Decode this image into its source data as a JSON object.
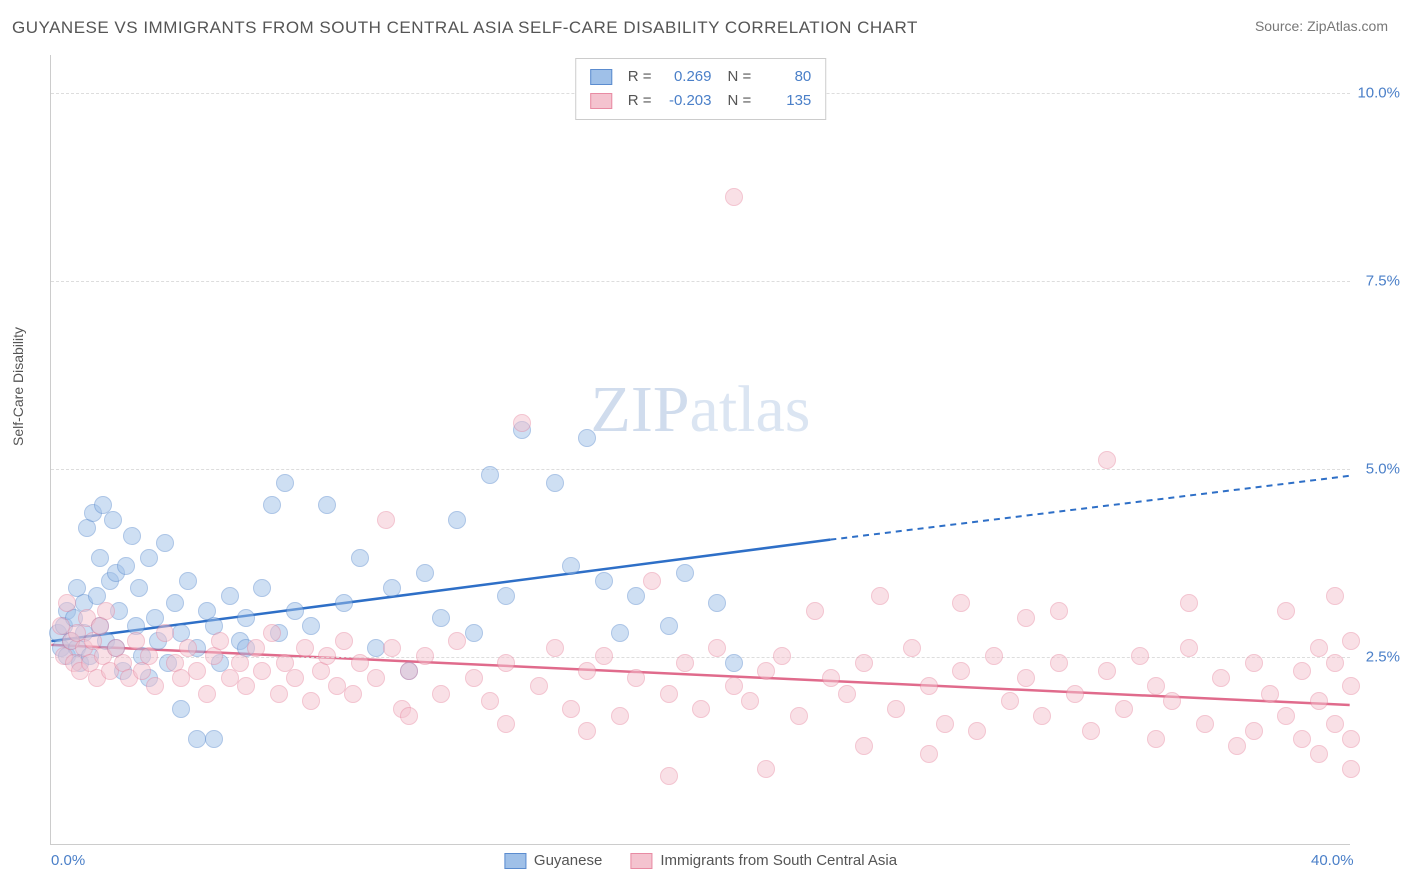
{
  "title": "GUYANESE VS IMMIGRANTS FROM SOUTH CENTRAL ASIA SELF-CARE DISABILITY CORRELATION CHART",
  "source": "Source: ZipAtlas.com",
  "watermark_a": "ZIP",
  "watermark_b": "atlas",
  "ylabel": "Self-Care Disability",
  "chart": {
    "type": "scatter",
    "xlim": [
      0,
      40
    ],
    "ylim": [
      0,
      10.5
    ],
    "xticks": [
      {
        "v": 0,
        "label": "0.0%"
      },
      {
        "v": 40,
        "label": "40.0%"
      }
    ],
    "yticks": [
      {
        "v": 2.5,
        "label": "2.5%"
      },
      {
        "v": 5.0,
        "label": "5.0%"
      },
      {
        "v": 7.5,
        "label": "7.5%"
      },
      {
        "v": 10.0,
        "label": "10.0%"
      }
    ],
    "grid_color": "#dddddd",
    "axis_color": "#cccccc",
    "background_color": "#ffffff",
    "marker_radius": 9,
    "marker_opacity": 0.5,
    "series": [
      {
        "name": "Guyanese",
        "id": "guyanese",
        "fill": "#9fc0e8",
        "stroke": "#5b8ccf",
        "line_color": "#2e6fc7",
        "R": "0.269",
        "N": "80",
        "trend": {
          "x1": 0,
          "y1": 2.7,
          "x2": 24,
          "y2": 4.05,
          "x2_ext": 40,
          "y2_ext": 4.9
        },
        "points": [
          [
            0.2,
            2.8
          ],
          [
            0.3,
            2.6
          ],
          [
            0.4,
            2.9
          ],
          [
            0.5,
            2.5
          ],
          [
            0.5,
            3.1
          ],
          [
            0.6,
            2.7
          ],
          [
            0.7,
            3.0
          ],
          [
            0.8,
            2.6
          ],
          [
            0.8,
            3.4
          ],
          [
            0.9,
            2.4
          ],
          [
            1.0,
            3.2
          ],
          [
            1.0,
            2.8
          ],
          [
            1.1,
            4.2
          ],
          [
            1.2,
            2.5
          ],
          [
            1.3,
            4.4
          ],
          [
            1.4,
            3.3
          ],
          [
            1.5,
            2.9
          ],
          [
            1.5,
            3.8
          ],
          [
            1.6,
            4.5
          ],
          [
            1.7,
            2.7
          ],
          [
            1.8,
            3.5
          ],
          [
            1.9,
            4.3
          ],
          [
            2.0,
            2.6
          ],
          [
            2.0,
            3.6
          ],
          [
            2.1,
            3.1
          ],
          [
            2.2,
            2.3
          ],
          [
            2.3,
            3.7
          ],
          [
            2.5,
            4.1
          ],
          [
            2.6,
            2.9
          ],
          [
            2.7,
            3.4
          ],
          [
            2.8,
            2.5
          ],
          [
            3.0,
            3.8
          ],
          [
            3.0,
            2.2
          ],
          [
            3.2,
            3.0
          ],
          [
            3.3,
            2.7
          ],
          [
            3.5,
            4.0
          ],
          [
            3.6,
            2.4
          ],
          [
            3.8,
            3.2
          ],
          [
            4.0,
            2.8
          ],
          [
            4.0,
            1.8
          ],
          [
            4.2,
            3.5
          ],
          [
            4.5,
            2.6
          ],
          [
            4.5,
            1.4
          ],
          [
            4.8,
            3.1
          ],
          [
            5.0,
            2.9
          ],
          [
            5.0,
            1.4
          ],
          [
            5.2,
            2.4
          ],
          [
            5.5,
            3.3
          ],
          [
            5.8,
            2.7
          ],
          [
            6.0,
            3.0
          ],
          [
            6.0,
            2.6
          ],
          [
            6.5,
            3.4
          ],
          [
            6.8,
            4.5
          ],
          [
            7.0,
            2.8
          ],
          [
            7.2,
            4.8
          ],
          [
            7.5,
            3.1
          ],
          [
            8.0,
            2.9
          ],
          [
            8.5,
            4.5
          ],
          [
            9.0,
            3.2
          ],
          [
            9.5,
            3.8
          ],
          [
            10.0,
            2.6
          ],
          [
            10.5,
            3.4
          ],
          [
            11.0,
            2.3
          ],
          [
            11.5,
            3.6
          ],
          [
            12.0,
            3.0
          ],
          [
            12.5,
            4.3
          ],
          [
            13.0,
            2.8
          ],
          [
            13.5,
            4.9
          ],
          [
            14.0,
            3.3
          ],
          [
            14.5,
            5.5
          ],
          [
            15.5,
            4.8
          ],
          [
            16.0,
            3.7
          ],
          [
            16.5,
            5.4
          ],
          [
            17.0,
            3.5
          ],
          [
            17.5,
            2.8
          ],
          [
            18.0,
            3.3
          ],
          [
            19.0,
            2.9
          ],
          [
            19.5,
            3.6
          ],
          [
            20.5,
            3.2
          ],
          [
            21.0,
            2.4
          ]
        ]
      },
      {
        "name": "Immigrants from South Central Asia",
        "id": "immigrants",
        "fill": "#f4c3cf",
        "stroke": "#e88ba3",
        "line_color": "#e06b8c",
        "R": "-0.203",
        "N": "135",
        "trend": {
          "x1": 0,
          "y1": 2.65,
          "x2": 40,
          "y2": 1.85,
          "x2_ext": 40,
          "y2_ext": 1.85
        },
        "points": [
          [
            0.3,
            2.9
          ],
          [
            0.4,
            2.5
          ],
          [
            0.5,
            3.2
          ],
          [
            0.6,
            2.7
          ],
          [
            0.7,
            2.4
          ],
          [
            0.8,
            2.8
          ],
          [
            0.9,
            2.3
          ],
          [
            1.0,
            2.6
          ],
          [
            1.1,
            3.0
          ],
          [
            1.2,
            2.4
          ],
          [
            1.3,
            2.7
          ],
          [
            1.4,
            2.2
          ],
          [
            1.5,
            2.9
          ],
          [
            1.6,
            2.5
          ],
          [
            1.7,
            3.1
          ],
          [
            1.8,
            2.3
          ],
          [
            2.0,
            2.6
          ],
          [
            2.2,
            2.4
          ],
          [
            2.4,
            2.2
          ],
          [
            2.6,
            2.7
          ],
          [
            2.8,
            2.3
          ],
          [
            3.0,
            2.5
          ],
          [
            3.2,
            2.1
          ],
          [
            3.5,
            2.8
          ],
          [
            3.8,
            2.4
          ],
          [
            4.0,
            2.2
          ],
          [
            4.2,
            2.6
          ],
          [
            4.5,
            2.3
          ],
          [
            4.8,
            2.0
          ],
          [
            5.0,
            2.5
          ],
          [
            5.2,
            2.7
          ],
          [
            5.5,
            2.2
          ],
          [
            5.8,
            2.4
          ],
          [
            6.0,
            2.1
          ],
          [
            6.3,
            2.6
          ],
          [
            6.5,
            2.3
          ],
          [
            6.8,
            2.8
          ],
          [
            7.0,
            2.0
          ],
          [
            7.2,
            2.4
          ],
          [
            7.5,
            2.2
          ],
          [
            7.8,
            2.6
          ],
          [
            8.0,
            1.9
          ],
          [
            8.3,
            2.3
          ],
          [
            8.5,
            2.5
          ],
          [
            8.8,
            2.1
          ],
          [
            9.0,
            2.7
          ],
          [
            9.3,
            2.0
          ],
          [
            9.5,
            2.4
          ],
          [
            10.0,
            2.2
          ],
          [
            10.3,
            4.3
          ],
          [
            10.5,
            2.6
          ],
          [
            10.8,
            1.8
          ],
          [
            11.0,
            2.3
          ],
          [
            11.5,
            2.5
          ],
          [
            12.0,
            2.0
          ],
          [
            12.5,
            2.7
          ],
          [
            13.0,
            2.2
          ],
          [
            13.5,
            1.9
          ],
          [
            14.0,
            2.4
          ],
          [
            14.5,
            5.6
          ],
          [
            15.0,
            2.1
          ],
          [
            15.5,
            2.6
          ],
          [
            16.0,
            1.8
          ],
          [
            16.5,
            2.3
          ],
          [
            17.0,
            2.5
          ],
          [
            17.5,
            1.7
          ],
          [
            18.0,
            2.2
          ],
          [
            18.5,
            3.5
          ],
          [
            19.0,
            2.0
          ],
          [
            19.5,
            2.4
          ],
          [
            20.0,
            1.8
          ],
          [
            20.5,
            2.6
          ],
          [
            21.0,
            2.1
          ],
          [
            21.0,
            8.6
          ],
          [
            21.5,
            1.9
          ],
          [
            22.0,
            2.3
          ],
          [
            22.5,
            2.5
          ],
          [
            23.0,
            1.7
          ],
          [
            23.5,
            3.1
          ],
          [
            24.0,
            2.2
          ],
          [
            24.5,
            2.0
          ],
          [
            25.0,
            2.4
          ],
          [
            25.5,
            3.3
          ],
          [
            26.0,
            1.8
          ],
          [
            26.5,
            2.6
          ],
          [
            27.0,
            2.1
          ],
          [
            27.5,
            1.6
          ],
          [
            28.0,
            2.3
          ],
          [
            28.0,
            3.2
          ],
          [
            28.5,
            1.5
          ],
          [
            29.0,
            2.5
          ],
          [
            29.5,
            1.9
          ],
          [
            30.0,
            2.2
          ],
          [
            30.0,
            3.0
          ],
          [
            30.5,
            1.7
          ],
          [
            31.0,
            2.4
          ],
          [
            31.0,
            3.1
          ],
          [
            31.5,
            2.0
          ],
          [
            32.0,
            1.5
          ],
          [
            32.5,
            2.3
          ],
          [
            32.5,
            5.1
          ],
          [
            33.0,
            1.8
          ],
          [
            33.5,
            2.5
          ],
          [
            34.0,
            2.1
          ],
          [
            34.0,
            1.4
          ],
          [
            34.5,
            1.9
          ],
          [
            35.0,
            2.6
          ],
          [
            35.0,
            3.2
          ],
          [
            35.5,
            1.6
          ],
          [
            36.0,
            2.2
          ],
          [
            36.5,
            1.3
          ],
          [
            37.0,
            2.4
          ],
          [
            37.0,
            1.5
          ],
          [
            37.5,
            2.0
          ],
          [
            38.0,
            1.7
          ],
          [
            38.0,
            3.1
          ],
          [
            38.5,
            2.3
          ],
          [
            38.5,
            1.4
          ],
          [
            39.0,
            1.9
          ],
          [
            39.0,
            2.6
          ],
          [
            39.0,
            1.2
          ],
          [
            39.5,
            1.6
          ],
          [
            39.5,
            2.4
          ],
          [
            39.5,
            3.3
          ],
          [
            40.0,
            2.1
          ],
          [
            40.0,
            1.4
          ],
          [
            40.0,
            1.0
          ],
          [
            40.0,
            2.7
          ],
          [
            19.0,
            0.9
          ],
          [
            22.0,
            1.0
          ],
          [
            25.0,
            1.3
          ],
          [
            27.0,
            1.2
          ],
          [
            14.0,
            1.6
          ],
          [
            16.5,
            1.5
          ],
          [
            11.0,
            1.7
          ]
        ]
      }
    ]
  },
  "legend_bottom": [
    {
      "swatch_fill": "#9fc0e8",
      "swatch_stroke": "#5b8ccf",
      "label": "Guyanese"
    },
    {
      "swatch_fill": "#f4c3cf",
      "swatch_stroke": "#e88ba3",
      "label": "Immigrants from South Central Asia"
    }
  ],
  "r_label": "R =",
  "n_label": "N ="
}
